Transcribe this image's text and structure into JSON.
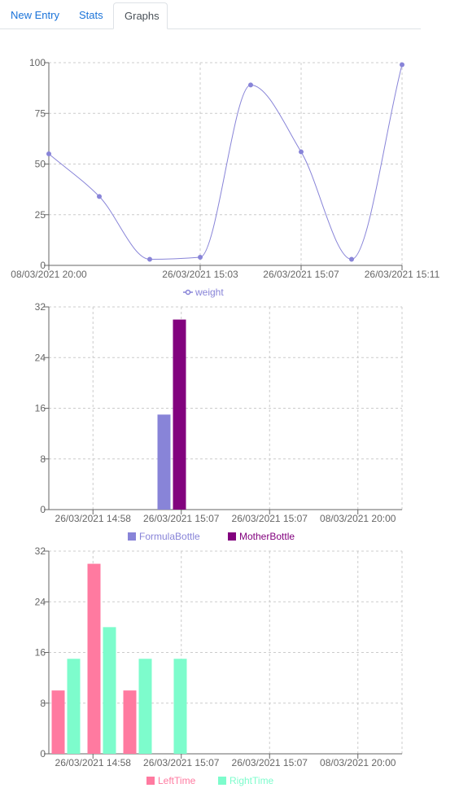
{
  "tabs": [
    {
      "label": "New Entry"
    },
    {
      "label": "Stats"
    },
    {
      "label": "Graphs",
      "active": true
    }
  ],
  "chart_data": [
    {
      "type": "line",
      "series_name": "weight",
      "color": "#8884d8",
      "x_ticks": [
        "08/03/2021 20:00",
        "26/03/2021 15:03",
        "26/03/2021 15:07",
        "26/03/2021 15:11"
      ],
      "ylim": [
        0,
        100
      ],
      "yticks": [
        0,
        25,
        50,
        75,
        100
      ],
      "values": [
        55,
        34,
        3,
        4,
        89,
        56,
        3,
        99
      ],
      "legend": [
        {
          "name": "weight",
          "color": "#8884d8",
          "shape": "line"
        }
      ],
      "grid": true
    },
    {
      "type": "bar",
      "x_ticks": [
        "26/03/2021 14:58",
        "26/03/2021 15:07",
        "26/03/2021 15:07",
        "08/03/2021 20:00"
      ],
      "ylim": [
        0,
        32
      ],
      "yticks": [
        0,
        8,
        16,
        24,
        32
      ],
      "series": [
        {
          "name": "FormulaBottle",
          "color": "#8884d8",
          "values": [
            0,
            15,
            0,
            0
          ]
        },
        {
          "name": "MotherBottle",
          "color": "#82027e",
          "values": [
            0,
            30,
            0,
            0
          ]
        }
      ],
      "legend": [
        {
          "name": "FormulaBottle",
          "color": "#8884d8"
        },
        {
          "name": "MotherBottle",
          "color": "#82027e"
        }
      ],
      "grid": true
    },
    {
      "type": "bar",
      "x_ticks": [
        "26/03/2021 14:58",
        "26/03/2021 15:07",
        "26/03/2021 15:07",
        "08/03/2021 20:00"
      ],
      "ylim": [
        0,
        32
      ],
      "yticks": [
        0,
        8,
        16,
        24,
        32
      ],
      "series": [
        {
          "name": "LeftTime",
          "color": "#ff7aa0",
          "values": [
            10,
            30,
            10,
            0
          ]
        },
        {
          "name": "RightTime",
          "color": "#7dfccc",
          "values": [
            15,
            20,
            15,
            15
          ]
        }
      ],
      "legend": [
        {
          "name": "LeftTime",
          "color": "#ff7aa0"
        },
        {
          "name": "RightTime",
          "color": "#7dfccc"
        }
      ],
      "grid": true
    }
  ]
}
